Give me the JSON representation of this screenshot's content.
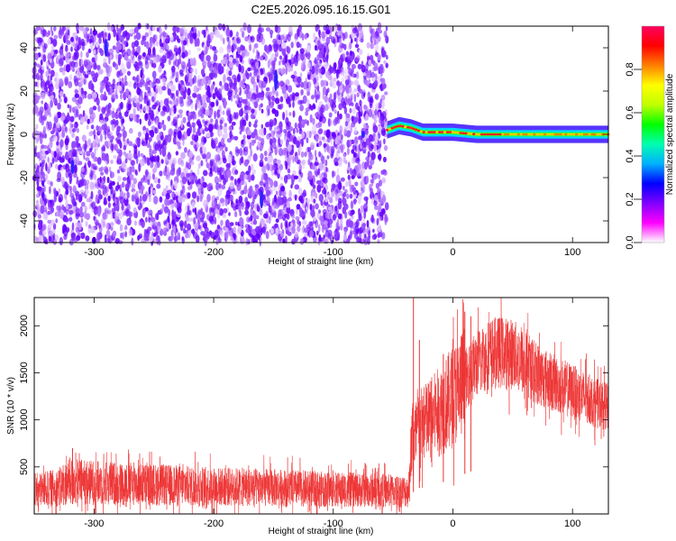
{
  "title": "C2E5.2026.095.16.15.G01",
  "chart_data": [
    {
      "type": "heatmap",
      "xlabel": "Height of straight line (km)",
      "ylabel": "Frequency (Hz)",
      "xlim": [
        -350,
        130
      ],
      "ylim": [
        -50,
        50
      ],
      "x_ticks": [
        -300,
        -200,
        -100,
        0,
        100
      ],
      "y_ticks": [
        -40,
        -20,
        0,
        20,
        40
      ],
      "colorbar": {
        "label": "Normalized spectral amplitude",
        "range": [
          0,
          1
        ],
        "ticks": [
          "0.0",
          "0.2",
          "0.4",
          "0.6",
          "0.8"
        ],
        "colors": [
          "#ffffff",
          "#ff00ff",
          "#8000ff",
          "#0000ff",
          "#00b0ff",
          "#00ffb0",
          "#00ff00",
          "#c0ff00",
          "#ffff00",
          "#ff8000",
          "#ff0000",
          "#ff0060"
        ]
      },
      "noise_region_x": [
        -350,
        -55
      ],
      "signal_track": [
        {
          "x": -55,
          "f": 2
        },
        {
          "x": -45,
          "f": 4
        },
        {
          "x": -35,
          "f": 3
        },
        {
          "x": -25,
          "f": 1
        },
        {
          "x": -15,
          "f": 1
        },
        {
          "x": 0,
          "f": 1
        },
        {
          "x": 20,
          "f": 0
        },
        {
          "x": 130,
          "f": 0
        }
      ],
      "grid": false
    },
    {
      "type": "line",
      "xlabel": "Height of straight line (km)",
      "ylabel": "SNR (10 * v/v)",
      "xlim": [
        -350,
        130
      ],
      "ylim": [
        0,
        2300
      ],
      "x_ticks": [
        -300,
        -200,
        -100,
        0,
        100
      ],
      "y_ticks": [
        500,
        1000,
        1500,
        2000
      ],
      "series_color": "#ee3333",
      "envelope": [
        {
          "x": -350,
          "y": 250
        },
        {
          "x": -330,
          "y": 280
        },
        {
          "x": -320,
          "y": 350
        },
        {
          "x": -300,
          "y": 330
        },
        {
          "x": -250,
          "y": 310
        },
        {
          "x": -200,
          "y": 290
        },
        {
          "x": -150,
          "y": 280
        },
        {
          "x": -100,
          "y": 260
        },
        {
          "x": -60,
          "y": 250
        },
        {
          "x": -37,
          "y": 240
        },
        {
          "x": -35,
          "y": 700
        },
        {
          "x": -30,
          "y": 900
        },
        {
          "x": -20,
          "y": 1000
        },
        {
          "x": -10,
          "y": 1100
        },
        {
          "x": 0,
          "y": 1250
        },
        {
          "x": 10,
          "y": 1420
        },
        {
          "x": 20,
          "y": 1600
        },
        {
          "x": 30,
          "y": 1700
        },
        {
          "x": 40,
          "y": 1720
        },
        {
          "x": 50,
          "y": 1700
        },
        {
          "x": 60,
          "y": 1600
        },
        {
          "x": 70,
          "y": 1500
        },
        {
          "x": 80,
          "y": 1420
        },
        {
          "x": 100,
          "y": 1300
        },
        {
          "x": 120,
          "y": 1180
        },
        {
          "x": 130,
          "y": 1130
        }
      ],
      "spikes": [
        {
          "x": -33,
          "y": 2300
        },
        {
          "x": -28,
          "y": 1850
        },
        {
          "x": -8,
          "y": 1700
        },
        {
          "x": 10,
          "y": 2150
        },
        {
          "x": 15,
          "y": 2100
        },
        {
          "x": -318,
          "y": 700
        }
      ],
      "grid": false
    }
  ]
}
